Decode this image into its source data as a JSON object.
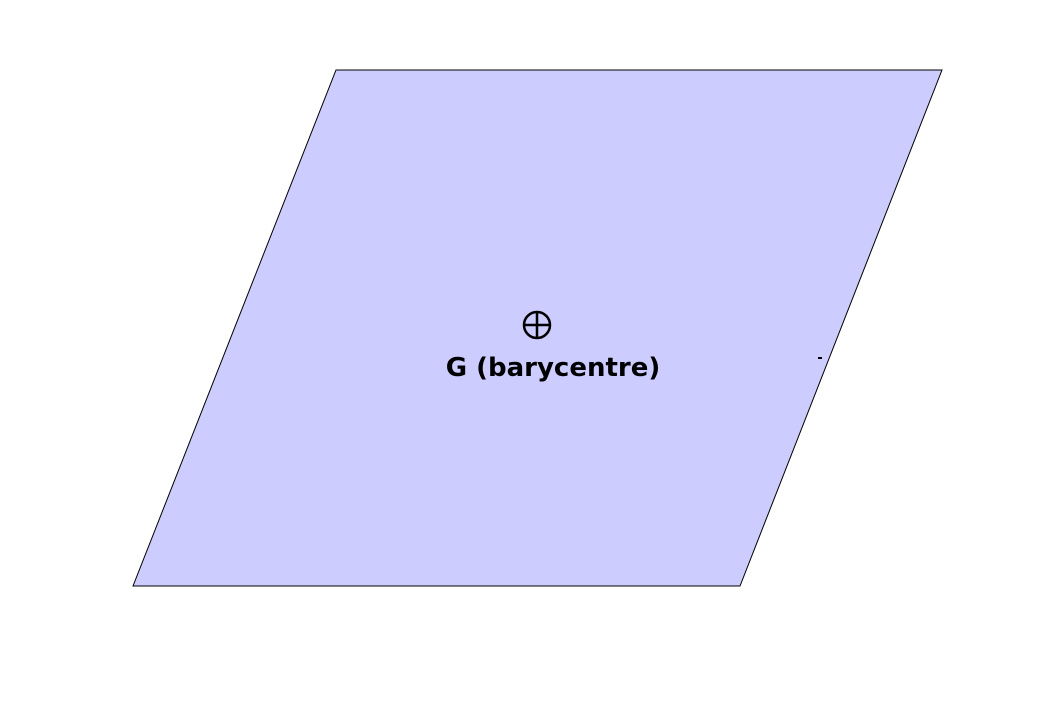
{
  "diagram": {
    "shape": "parallelogram",
    "fill_color": "#ccccff",
    "stroke_color": "#000000",
    "centroid_marker": "circle-plus-icon",
    "centroid_label": "G (barycentre)"
  }
}
